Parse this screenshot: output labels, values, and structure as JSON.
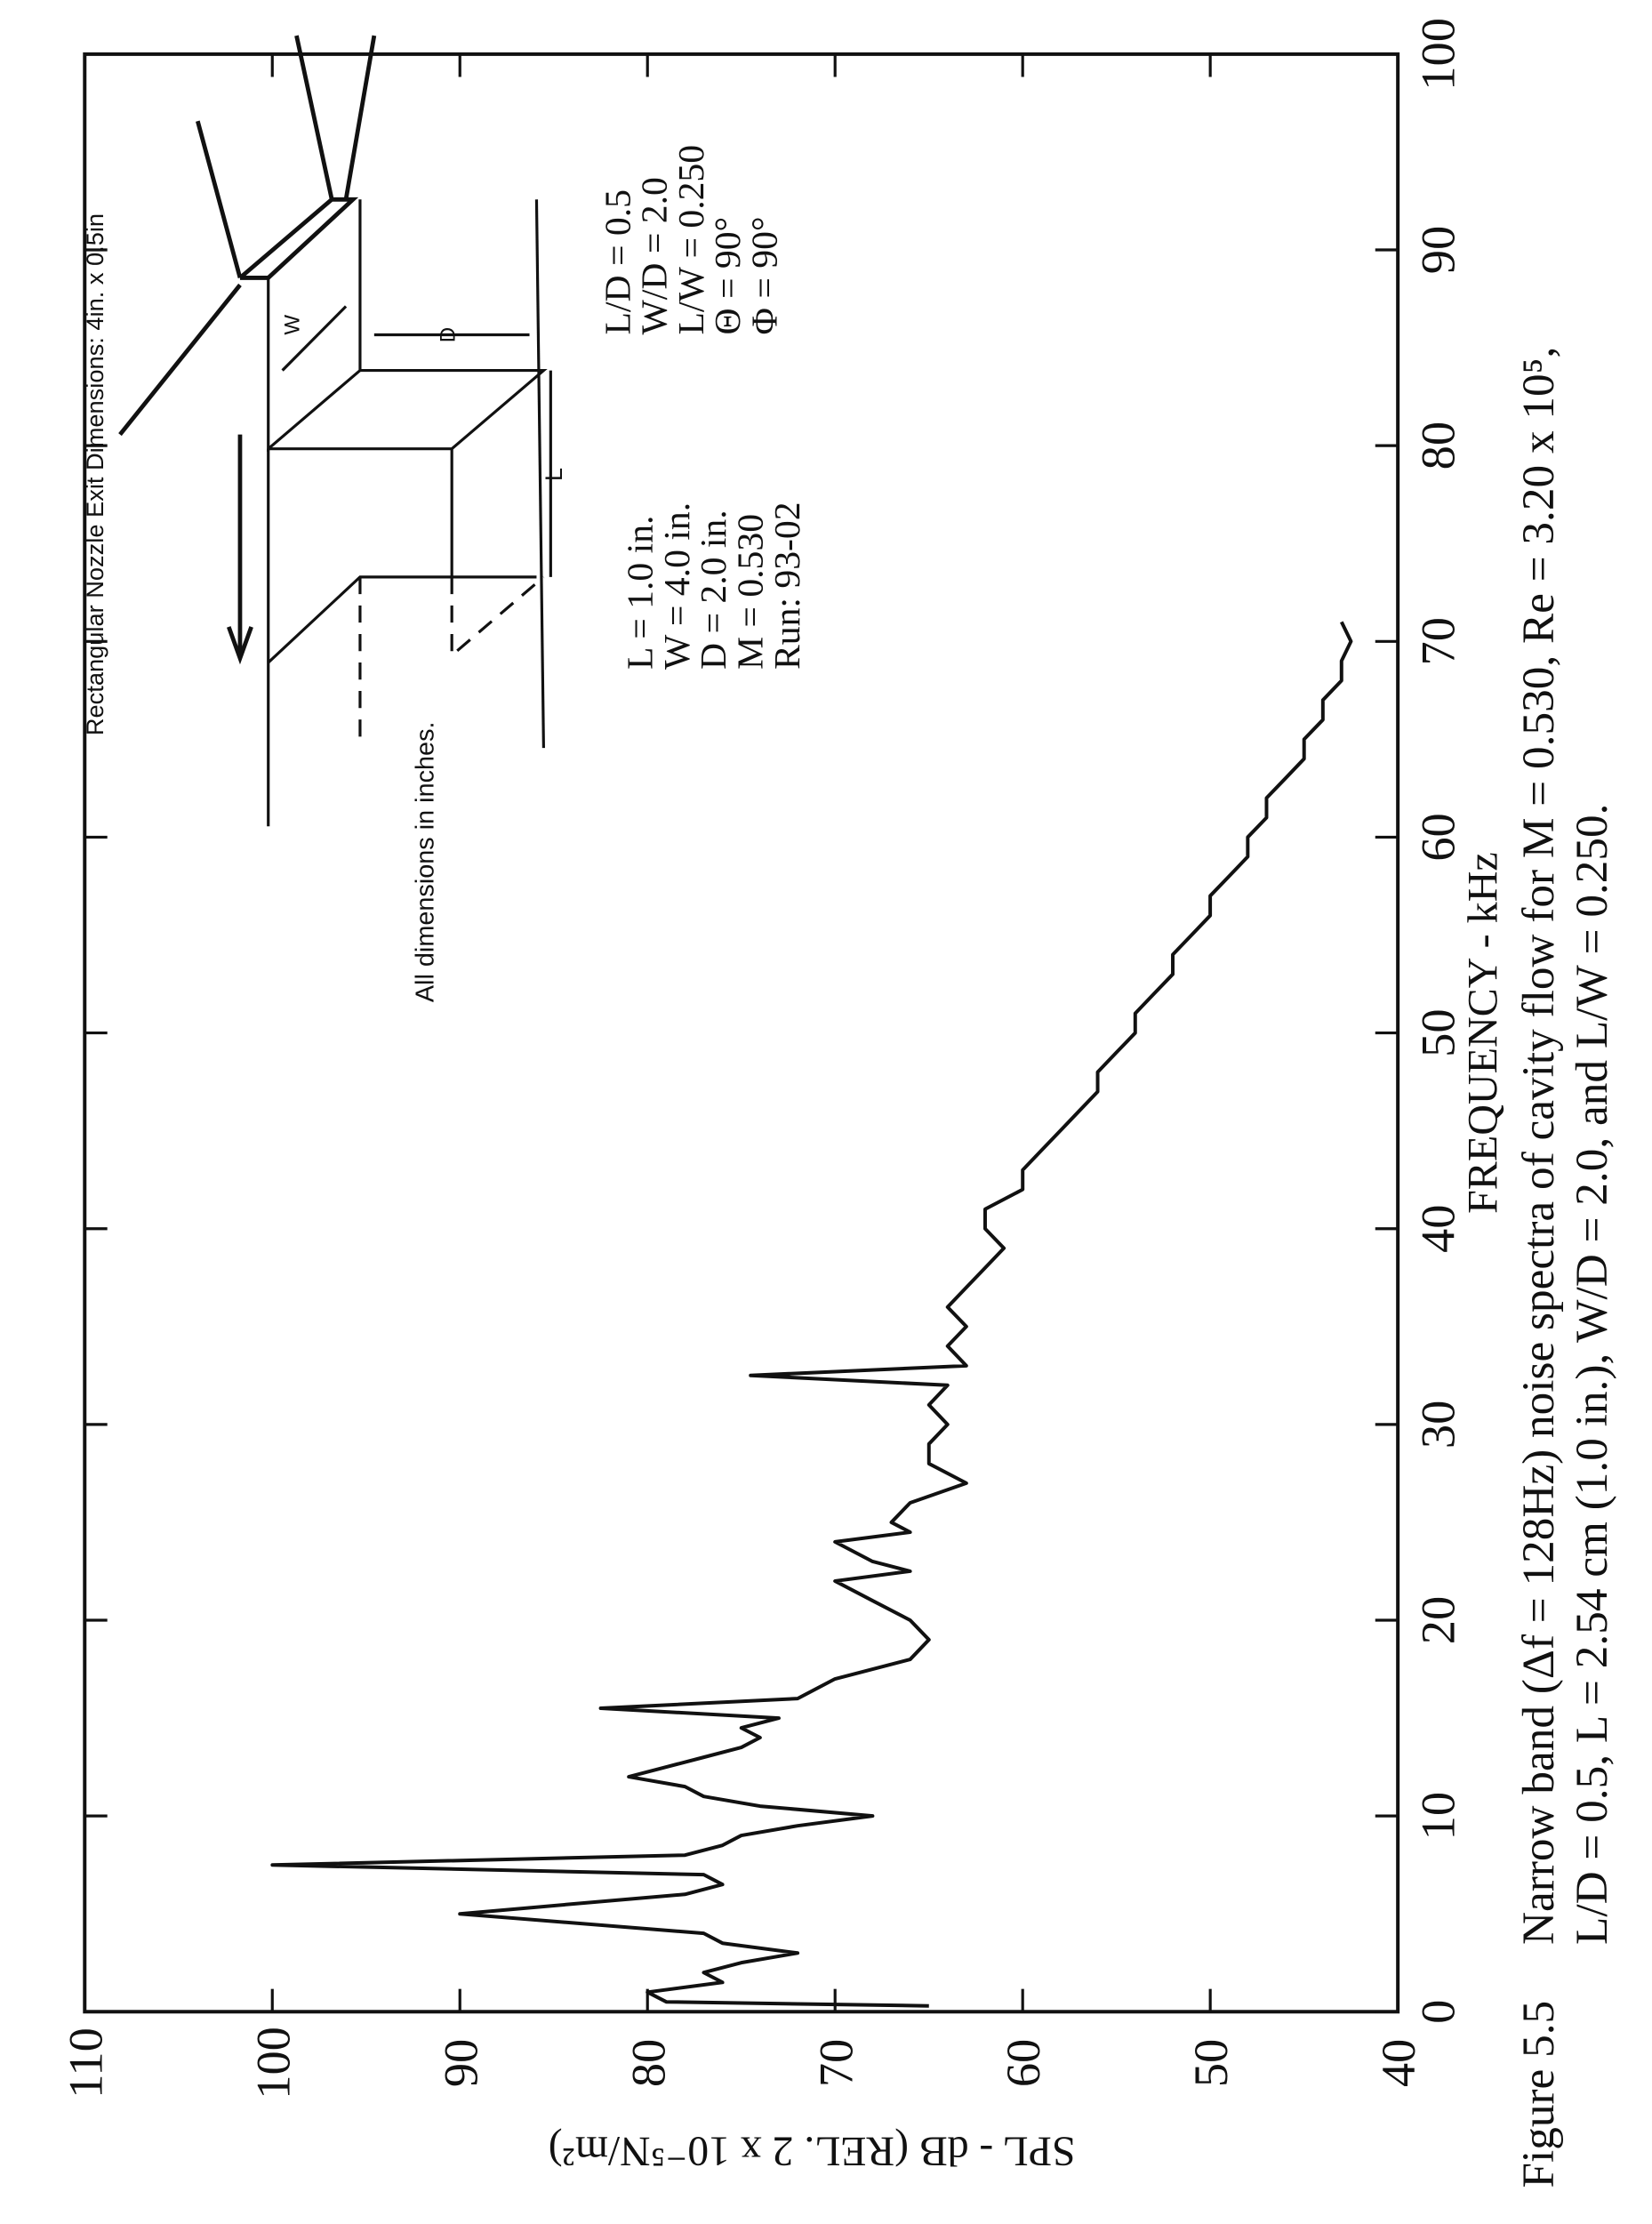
{
  "chart_data": {
    "type": "line",
    "caption_label": "Figure 5.5",
    "caption": [
      "Narrow band (Δf = 128Hz) noise spectra of cavity flow for M = 0.530, Re = 3.20 x 10⁵,",
      "L/D = 0.5, L = 2.54 cm (1.0 in.),  W/D = 2.0, and L/W = 0.250."
    ],
    "x_label": "FREQUENCY - kHz",
    "y_label": "SPL - dB (REL. 2 x 10⁻⁵N/m²)",
    "annotations": [
      "Rectangular Nozzle Exit Dimensions: 4in. x 0.5in",
      "All dimensions in inches.",
      "W",
      "D",
      "L",
      "L = 1.0 in.",
      "W = 4.0 in.",
      "D = 2.0 in.",
      "M = 0.530",
      "Run: 93-02",
      "L/D = 0.5",
      "W/D = 2.0",
      "L/W = 0.250",
      "Θ = 90°",
      "Φ = 90°"
    ],
    "x": [
      0.3,
      0.5,
      1,
      1.5,
      2,
      2.5,
      3,
      3.5,
      4,
      5,
      5.5,
      6,
      6.5,
      7,
      7.5,
      8,
      8.5,
      9,
      9.5,
      10,
      10.5,
      11,
      11.5,
      12,
      12.5,
      13,
      13.5,
      14,
      14.5,
      15,
      15.5,
      16,
      17,
      18,
      19,
      20,
      21,
      22,
      22.5,
      23,
      24,
      24.5,
      25,
      26,
      27,
      28,
      29,
      30,
      31,
      32,
      32.5,
      33,
      34,
      35,
      36,
      37,
      38,
      39,
      40,
      41,
      42,
      43,
      44,
      45,
      46,
      47,
      48,
      49,
      50,
      51,
      52,
      53,
      54,
      55,
      56,
      57,
      58,
      59,
      60,
      61,
      62,
      63,
      64,
      65,
      66,
      67,
      68,
      69,
      70,
      71
    ],
    "values": [
      65,
      79,
      80,
      76,
      77,
      75,
      72,
      76,
      77,
      90,
      84,
      78,
      76,
      77,
      100,
      78,
      76,
      75,
      72,
      68,
      74,
      77,
      78,
      81,
      79,
      77,
      75,
      74,
      75,
      73,
      82.5,
      72,
      70,
      66,
      65,
      66,
      68,
      70,
      66,
      68,
      70,
      66,
      67,
      66,
      63,
      65,
      65,
      64,
      65,
      64,
      74.5,
      63,
      64,
      63,
      64,
      63,
      62,
      61,
      62,
      62,
      60,
      60,
      59,
      58,
      57,
      56,
      56,
      55,
      54,
      54,
      53,
      52,
      52,
      51,
      50,
      50,
      49,
      48,
      48,
      47,
      47,
      46,
      45,
      45,
      44,
      44,
      43,
      43,
      42.5,
      43
    ],
    "color": "#111111",
    "xlim": [
      0,
      100
    ],
    "ylim": [
      40,
      110
    ],
    "xticks": [
      0,
      10,
      20,
      30,
      40,
      50,
      60,
      70,
      80,
      90,
      100
    ],
    "yticks": [
      40,
      50,
      60,
      70,
      80,
      90,
      100,
      110
    ]
  }
}
